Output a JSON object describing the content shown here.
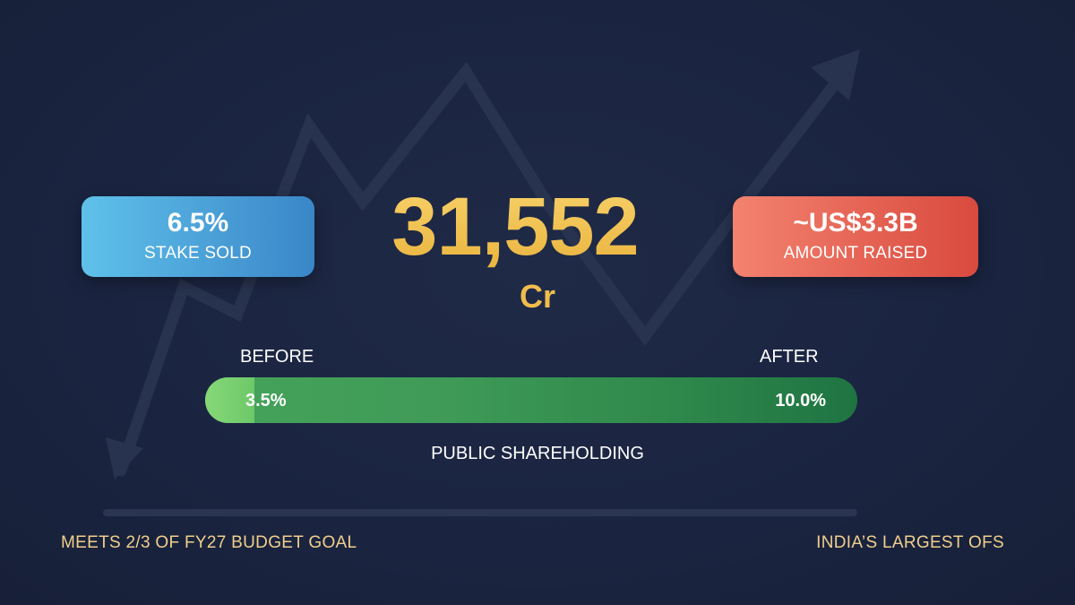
{
  "stats": {
    "stake": {
      "value": "6.5%",
      "label": "STAKE SOLD"
    },
    "amount": {
      "value": "~US$3.3B",
      "label": "AMOUNT RAISED"
    },
    "headline": {
      "value": "31,552",
      "unit": "Cr"
    }
  },
  "shareholding": {
    "before_label": "BEFORE",
    "after_label": "AFTER",
    "before_value": "3.5%",
    "after_value": "10.0%",
    "before_fraction": 0.035,
    "after_fraction": 0.1,
    "caption": "PUBLIC SHAREHOLDING"
  },
  "footer": {
    "left": "MEETS 2/3 OF FY27 BUDGET GOAL",
    "right": "INDIA’S LARGEST OFS"
  },
  "colors": {
    "background": "#1b2540",
    "gold": "#f2be4e",
    "blue_card": "#3a86c8",
    "red_card": "#d94a3e",
    "green_bar": "#2f8a4c",
    "footer_text": "#f1cf8c"
  }
}
